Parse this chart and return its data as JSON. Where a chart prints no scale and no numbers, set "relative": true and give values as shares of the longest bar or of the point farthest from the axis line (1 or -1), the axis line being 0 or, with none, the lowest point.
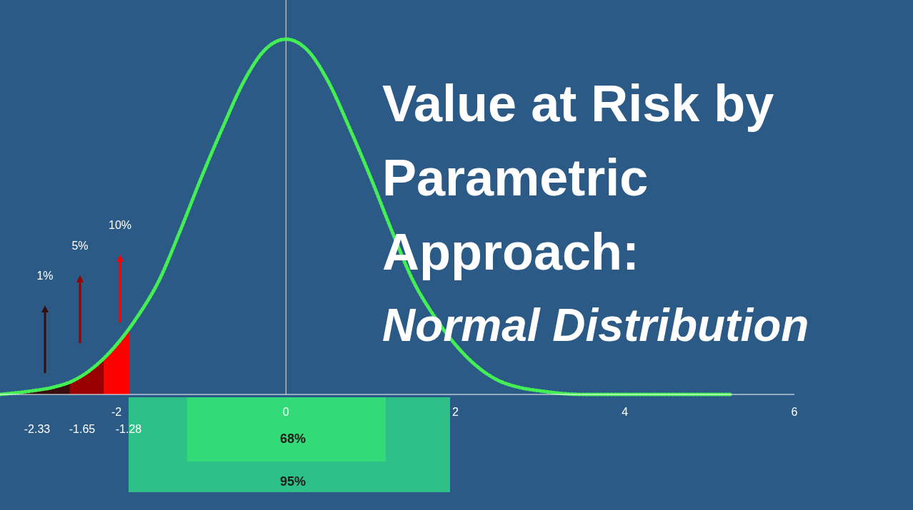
{
  "chart_data": {
    "type": "line",
    "title": "Value at Risk by Parametric Approach:",
    "subtitle": "Normal Distribution",
    "relative": true,
    "xlim": [
      -3.375,
      6
    ],
    "xticks": [
      -2,
      0,
      2,
      4,
      6
    ],
    "tick_labels": "x",
    "grid": false,
    "marker": "none",
    "line_style": "dotted",
    "series": [
      {
        "color": "#44ee55",
        "x": [
          -3.375,
          -3,
          -2.75,
          -2.5,
          -2.25,
          -2,
          -1.75,
          -1.5,
          -1.25,
          -1,
          -0.75,
          -0.5,
          -0.25,
          0,
          0.25,
          0.5,
          0.75,
          1,
          1.25,
          1.5,
          1.75,
          2,
          2.25,
          2.5,
          2.75,
          3,
          3.5,
          4,
          4.5,
          5,
          5.25
        ],
        "values": [
          0,
          0.01,
          0.02,
          0.04,
          0.08,
          0.14,
          0.22,
          0.32,
          0.46,
          0.61,
          0.75,
          0.88,
          0.97,
          1,
          0.97,
          0.88,
          0.75,
          0.61,
          0.46,
          0.32,
          0.22,
          0.14,
          0.08,
          0.04,
          0.02,
          0.01,
          0,
          0,
          0,
          0,
          0
        ]
      },
      {
        "type": "area",
        "color": "#3a0d0d",
        "x": [
          -3.375,
          -3,
          -2.75,
          -2.55
        ],
        "values": [
          0,
          0.01,
          0.02,
          0.04
        ]
      },
      {
        "type": "area",
        "color": "#990000",
        "x": [
          -2.55,
          -2.35,
          -2.15
        ],
        "values": [
          0.04,
          0.06,
          0.1
        ]
      },
      {
        "type": "area",
        "color": "#ff0000",
        "x": [
          -2.15,
          -2,
          -1.85
        ],
        "values": [
          0.1,
          0.14,
          0.18
        ]
      }
    ],
    "ref_lines": [
      {
        "axis": "x",
        "value": 0,
        "color": "#dddddd"
      }
    ],
    "annotations": [
      "1%",
      "5%",
      "10%",
      "-2.33",
      "-1.65",
      "-1.28",
      "95%",
      "68%"
    ]
  }
}
